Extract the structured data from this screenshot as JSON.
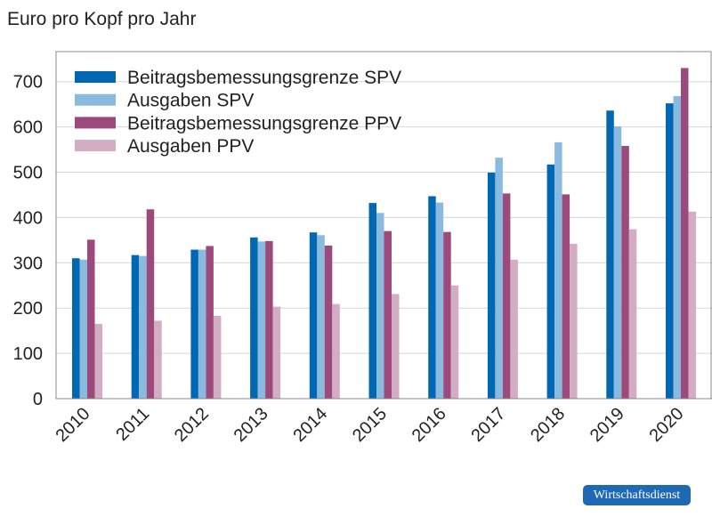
{
  "chart_data": {
    "type": "bar",
    "title": "Euro pro Kopf pro Jahr",
    "xlabel": "",
    "ylabel": "",
    "ylim": [
      0,
      750
    ],
    "yticks": [
      0,
      100,
      200,
      300,
      400,
      500,
      600,
      700
    ],
    "grid": true,
    "legend_position": "top-left",
    "categories": [
      "2010",
      "2011",
      "2012",
      "2013",
      "2014",
      "2015",
      "2016",
      "2017",
      "2018",
      "2019",
      "2020"
    ],
    "series": [
      {
        "name": "Beitragsbemessungsgrenze SPV",
        "color": "#0068b3",
        "values": [
          310,
          317,
          329,
          356,
          367,
          432,
          447,
          499,
          517,
          636,
          652
        ]
      },
      {
        "name": "Ausgaben SPV",
        "color": "#8bbadf",
        "values": [
          307,
          315,
          329,
          347,
          361,
          410,
          433,
          532,
          566,
          601,
          668
        ]
      },
      {
        "name": "Beitragsbemessungsgrenze PPV",
        "color": "#9c4a7b",
        "values": [
          351,
          418,
          337,
          348,
          338,
          370,
          368,
          453,
          451,
          558,
          730
        ]
      },
      {
        "name": "Ausgaben PPV",
        "color": "#d3adc3",
        "values": [
          165,
          172,
          183,
          203,
          209,
          231,
          250,
          307,
          342,
          374,
          413
        ]
      }
    ]
  },
  "logo": "Wirtschaftsdienst"
}
